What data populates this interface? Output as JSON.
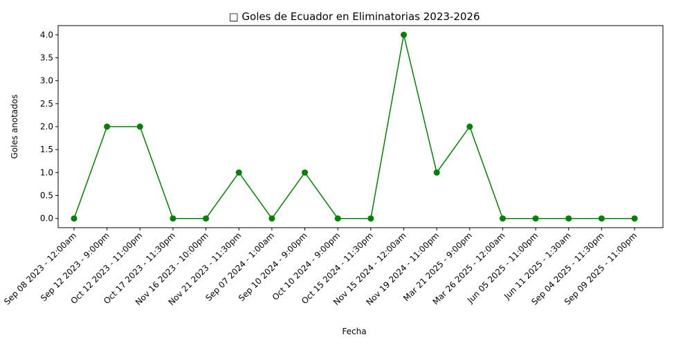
{
  "chart_data": {
    "type": "line",
    "title": "□ Goles de Ecuador en Eliminatorias 2023-2026",
    "xlabel": "Fecha",
    "ylabel": "Goles anotados",
    "categories": [
      "Sep 08 2023 - 12:00am",
      "Sep 12 2023 - 9:00pm",
      "Oct 12 2023 - 11:00pm",
      "Oct 17 2023 - 11:30pm",
      "Nov 16 2023 - 10:00pm",
      "Nov 21 2023 - 11:30pm",
      "Sep 07 2024 - 1:00am",
      "Sep 10 2024 - 9:00pm",
      "Oct 10 2024 - 9:00pm",
      "Oct 15 2024 - 11:30pm",
      "Nov 15 2024 - 12:00am",
      "Nov 19 2024 - 11:00pm",
      "Mar 21 2025 - 9:00pm",
      "Mar 26 2025 - 12:00am",
      "Jun 05 2025 - 11:00pm",
      "Jun 11 2025 - 1:30am",
      "Sep 04 2025 - 11:30pm",
      "Sep 09 2025 - 11:00pm"
    ],
    "values": [
      0,
      2,
      2,
      0,
      0,
      1,
      0,
      1,
      0,
      0,
      4,
      1,
      2,
      0,
      0,
      0,
      0,
      0
    ],
    "ylim": [
      -0.2,
      4.2
    ],
    "yticks": [
      "0.0",
      "0.5",
      "1.0",
      "1.5",
      "2.0",
      "2.5",
      "3.0",
      "3.5",
      "4.0"
    ],
    "grid": false,
    "color": "#008000"
  }
}
